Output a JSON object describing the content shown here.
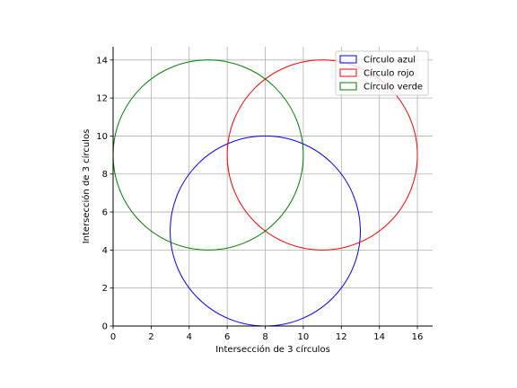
{
  "chart_data": {
    "type": "scatter",
    "xlabel": "Intersección de 3 círculos",
    "ylabel": "Intersección de 3 círculos",
    "xlim": [
      0,
      16.8
    ],
    "ylim": [
      0,
      14.7
    ],
    "x_ticks": [
      0,
      2,
      4,
      6,
      8,
      10,
      12,
      14,
      16
    ],
    "y_ticks": [
      0,
      2,
      4,
      6,
      8,
      10,
      12,
      14
    ],
    "grid": true,
    "legend_position": "top-right",
    "series": [
      {
        "name": "Círculo azul",
        "color": "#0000ff",
        "center": [
          8,
          5
        ],
        "radius": 5
      },
      {
        "name": "Círculo rojo",
        "color": "#ff0000",
        "center": [
          11,
          9
        ],
        "radius": 5
      },
      {
        "name": "Círculo verde",
        "color": "#008000",
        "center": [
          5,
          9
        ],
        "radius": 5
      }
    ]
  }
}
